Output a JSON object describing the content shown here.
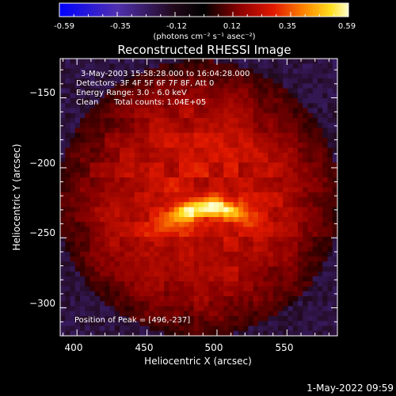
{
  "colorbar": {
    "ticks": [
      "-0.59",
      "-0.35",
      "-0.12",
      "0.12",
      "0.35",
      "0.59"
    ],
    "unit_label": "(photons cm⁻² s⁻¹ asec⁻²)"
  },
  "chart_data": {
    "type": "heatmap",
    "title": "Reconstructed RHESSI Image",
    "xlabel": "Heliocentric X (arcsec)",
    "ylabel": "Heliocentric Y (arcsec)",
    "xlim": [
      388,
      586
    ],
    "ylim": [
      -320,
      -122
    ],
    "x_ticks": [
      400,
      450,
      500,
      550
    ],
    "y_ticks": [
      -150,
      -200,
      -250,
      -300
    ],
    "x_tick_labels": [
      "400",
      "450",
      "500",
      "550"
    ],
    "y_tick_labels": [
      "−150",
      "−200",
      "−250",
      "−300"
    ],
    "color_range": [
      -0.59,
      0.59
    ],
    "colormap": "blue-purple-black-red-orange-yellow-white",
    "peak": [
      496,
      -237
    ],
    "annotations": {
      "time_range": "3-May-2003 15:58:28.000 to 16:04:28.000",
      "detectors": "Detectors: 3F 4F 5F 6F 7F 8F, Att 0",
      "energy_range": "Energy Range: 3.0 - 6.0 keV",
      "method": "Clean",
      "total_counts": "Total counts: 1.04E+05",
      "peak_position": "Position of Peak = [496,-237]"
    }
  },
  "footer": {
    "timestamp": "1-May-2022 09:59"
  }
}
